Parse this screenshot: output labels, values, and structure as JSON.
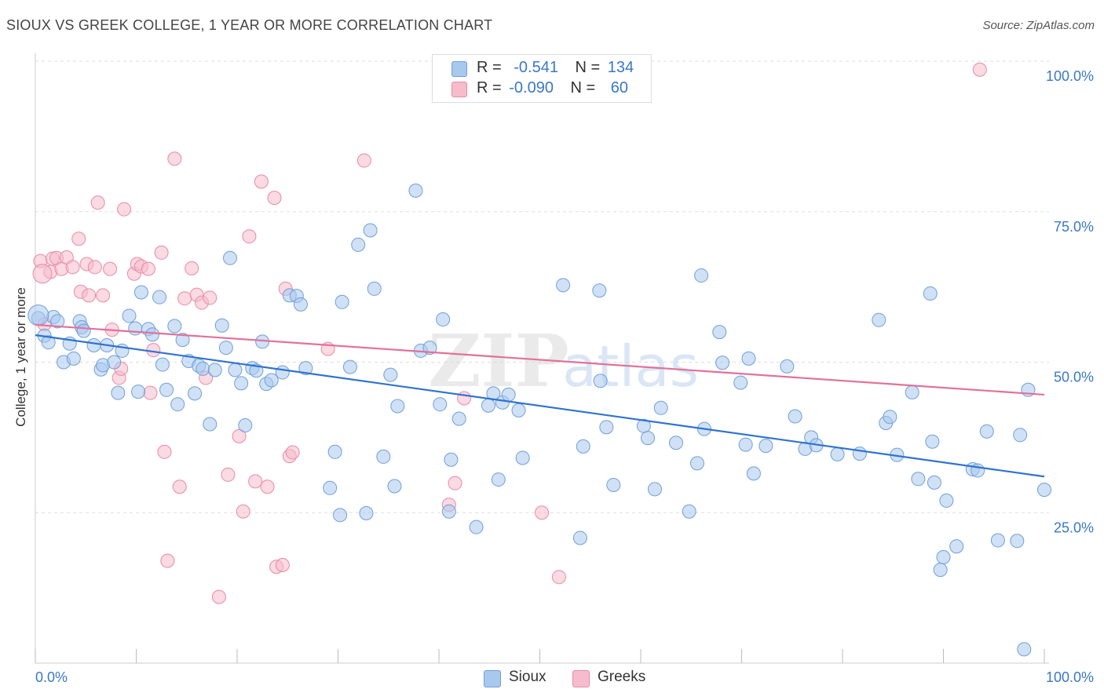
{
  "title": "SIOUX VS GREEK COLLEGE, 1 YEAR OR MORE CORRELATION CHART",
  "source": "Source: ZipAtlas.com",
  "watermark": {
    "zip": "ZIP",
    "atlas": "atlas"
  },
  "colors": {
    "sioux_fill": "#a9c8ee",
    "sioux_stroke": "#6f9fd8",
    "sioux_line": "#2f73d0",
    "greeks_fill": "#f6bccc",
    "greeks_stroke": "#e98aa6",
    "greeks_line": "#e2719a",
    "axis_label": "#3a78c8",
    "grid": "#dddddd"
  },
  "legend": {
    "rows": [
      {
        "r_label": "R =",
        "r_value": "-0.541",
        "n_label": "N =",
        "n_value": "134"
      },
      {
        "r_label": "R =",
        "r_value": "-0.090",
        "n_label": "N =",
        "n_value": "60"
      }
    ]
  },
  "bottom_legend": {
    "sioux": "Sioux",
    "greeks": "Greeks"
  },
  "chart_data": {
    "type": "scatter",
    "ylabel": "College, 1 year or more",
    "x_tick_labels": [
      "0.0%",
      "100.0%"
    ],
    "y_tick_labels": [
      "25.0%",
      "50.0%",
      "75.0%",
      "100.0%"
    ],
    "xlim": [
      0,
      100
    ],
    "ylim": [
      0,
      100
    ],
    "grid": true,
    "series": [
      {
        "name": "Sioux",
        "trend": {
          "x1": 0,
          "y1": 54.5,
          "x2": 100,
          "y2": 31.0
        },
        "points": [
          [
            0.3,
            57.3
          ],
          [
            0.9,
            54.4
          ],
          [
            1.3,
            53.3
          ],
          [
            1.8,
            57.5
          ],
          [
            2.2,
            56.8
          ],
          [
            2.8,
            50.0
          ],
          [
            3.4,
            53.1
          ],
          [
            3.8,
            50.6
          ],
          [
            4.4,
            56.8
          ],
          [
            4.6,
            55.8
          ],
          [
            4.8,
            55.2
          ],
          [
            5.8,
            52.8
          ],
          [
            6.5,
            48.8
          ],
          [
            6.7,
            49.5
          ],
          [
            7.1,
            52.8
          ],
          [
            7.8,
            50.0
          ],
          [
            8.2,
            44.9
          ],
          [
            8.6,
            51.9
          ],
          [
            9.3,
            57.7
          ],
          [
            9.9,
            55.6
          ],
          [
            10.2,
            45.1
          ],
          [
            10.5,
            61.6
          ],
          [
            11.2,
            55.5
          ],
          [
            11.6,
            54.6
          ],
          [
            12.3,
            60.8
          ],
          [
            12.6,
            49.6
          ],
          [
            13.0,
            45.4
          ],
          [
            13.8,
            56.0
          ],
          [
            14.1,
            43.0
          ],
          [
            14.6,
            53.7
          ],
          [
            15.2,
            50.2
          ],
          [
            15.8,
            44.8
          ],
          [
            16.2,
            49.4
          ],
          [
            16.6,
            48.9
          ],
          [
            17.3,
            39.7
          ],
          [
            17.8,
            48.7
          ],
          [
            18.5,
            56.1
          ],
          [
            18.9,
            52.4
          ],
          [
            19.3,
            67.3
          ],
          [
            19.8,
            48.7
          ],
          [
            20.4,
            46.5
          ],
          [
            20.8,
            39.5
          ],
          [
            21.5,
            49.0
          ],
          [
            21.9,
            48.6
          ],
          [
            22.5,
            53.4
          ],
          [
            22.9,
            46.4
          ],
          [
            23.4,
            47.0
          ],
          [
            24.5,
            48.3
          ],
          [
            25.2,
            61.1
          ],
          [
            25.9,
            61.0
          ],
          [
            26.3,
            59.6
          ],
          [
            26.8,
            49.0
          ],
          [
            29.2,
            29.1
          ],
          [
            29.7,
            35.1
          ],
          [
            30.2,
            24.6
          ],
          [
            30.4,
            60.0
          ],
          [
            31.2,
            49.2
          ],
          [
            32.0,
            69.5
          ],
          [
            32.8,
            24.9
          ],
          [
            33.2,
            71.9
          ],
          [
            33.6,
            62.2
          ],
          [
            34.5,
            34.3
          ],
          [
            35.2,
            47.9
          ],
          [
            35.6,
            29.4
          ],
          [
            35.9,
            42.7
          ],
          [
            37.7,
            78.5
          ],
          [
            38.2,
            51.9
          ],
          [
            39.1,
            52.4
          ],
          [
            40.1,
            43.0
          ],
          [
            40.4,
            57.1
          ],
          [
            41.0,
            25.2
          ],
          [
            41.2,
            33.8
          ],
          [
            42.0,
            40.6
          ],
          [
            43.7,
            22.6
          ],
          [
            44.9,
            42.8
          ],
          [
            45.4,
            44.8
          ],
          [
            45.9,
            30.5
          ],
          [
            46.3,
            43.3
          ],
          [
            46.9,
            44.6
          ],
          [
            47.9,
            42.0
          ],
          [
            48.3,
            34.1
          ],
          [
            52.3,
            62.8
          ],
          [
            54.0,
            20.8
          ],
          [
            54.3,
            36.0
          ],
          [
            55.9,
            61.9
          ],
          [
            56.0,
            46.9
          ],
          [
            56.6,
            39.2
          ],
          [
            57.3,
            29.6
          ],
          [
            60.3,
            39.4
          ],
          [
            60.7,
            37.4
          ],
          [
            61.4,
            28.9
          ],
          [
            62.0,
            42.4
          ],
          [
            63.5,
            36.6
          ],
          [
            64.8,
            25.2
          ],
          [
            65.6,
            33.2
          ],
          [
            66.0,
            64.4
          ],
          [
            66.3,
            38.9
          ],
          [
            67.8,
            55.0
          ],
          [
            68.1,
            49.9
          ],
          [
            69.9,
            46.6
          ],
          [
            70.4,
            36.3
          ],
          [
            70.7,
            50.6
          ],
          [
            71.2,
            31.5
          ],
          [
            72.4,
            36.1
          ],
          [
            74.5,
            49.3
          ],
          [
            75.3,
            41.0
          ],
          [
            76.3,
            35.6
          ],
          [
            76.9,
            37.5
          ],
          [
            77.4,
            36.2
          ],
          [
            79.5,
            34.7
          ],
          [
            81.7,
            34.8
          ],
          [
            83.6,
            57.0
          ],
          [
            84.3,
            39.9
          ],
          [
            84.7,
            40.9
          ],
          [
            85.4,
            34.6
          ],
          [
            86.9,
            45.0
          ],
          [
            87.5,
            30.6
          ],
          [
            88.7,
            61.4
          ],
          [
            88.9,
            36.8
          ],
          [
            89.1,
            30.0
          ],
          [
            89.7,
            15.5
          ],
          [
            90.0,
            17.6
          ],
          [
            90.3,
            27.0
          ],
          [
            91.3,
            19.4
          ],
          [
            92.9,
            32.2
          ],
          [
            93.4,
            32.0
          ],
          [
            94.3,
            38.5
          ],
          [
            95.4,
            20.4
          ],
          [
            97.3,
            20.3
          ],
          [
            97.6,
            37.9
          ],
          [
            98.0,
            2.3
          ],
          [
            98.4,
            45.4
          ],
          [
            100.0,
            28.8
          ]
        ]
      },
      {
        "name": "Greeks",
        "trend": {
          "x1": 0,
          "y1": 56.2,
          "x2": 100,
          "y2": 44.6
        },
        "points": [
          [
            0.5,
            66.8
          ],
          [
            0.9,
            56.3
          ],
          [
            1.5,
            65.0
          ],
          [
            1.7,
            67.2
          ],
          [
            2.1,
            67.3
          ],
          [
            2.6,
            65.5
          ],
          [
            3.1,
            67.4
          ],
          [
            3.7,
            65.8
          ],
          [
            4.3,
            70.5
          ],
          [
            4.5,
            61.7
          ],
          [
            5.1,
            66.3
          ],
          [
            5.3,
            61.1
          ],
          [
            5.9,
            65.8
          ],
          [
            6.2,
            76.5
          ],
          [
            6.7,
            61.1
          ],
          [
            7.4,
            65.5
          ],
          [
            7.6,
            55.4
          ],
          [
            8.3,
            47.4
          ],
          [
            8.5,
            48.9
          ],
          [
            8.8,
            75.4
          ],
          [
            9.8,
            64.7
          ],
          [
            10.1,
            66.3
          ],
          [
            10.5,
            65.9
          ],
          [
            11.2,
            65.5
          ],
          [
            11.4,
            44.9
          ],
          [
            11.7,
            52.0
          ],
          [
            12.5,
            68.2
          ],
          [
            12.8,
            35.1
          ],
          [
            13.1,
            17.0
          ],
          [
            13.8,
            83.8
          ],
          [
            14.3,
            29.3
          ],
          [
            14.8,
            60.6
          ],
          [
            15.5,
            65.6
          ],
          [
            16.0,
            61.2
          ],
          [
            16.5,
            59.9
          ],
          [
            16.9,
            47.4
          ],
          [
            17.3,
            60.7
          ],
          [
            18.2,
            11.0
          ],
          [
            19.1,
            31.3
          ],
          [
            20.2,
            37.7
          ],
          [
            20.6,
            25.2
          ],
          [
            21.2,
            70.9
          ],
          [
            21.8,
            30.2
          ],
          [
            22.4,
            80.0
          ],
          [
            23.0,
            29.3
          ],
          [
            23.7,
            77.3
          ],
          [
            23.9,
            16.0
          ],
          [
            24.5,
            16.3
          ],
          [
            24.8,
            62.2
          ],
          [
            25.2,
            34.4
          ],
          [
            25.5,
            35.0
          ],
          [
            29.0,
            52.2
          ],
          [
            32.6,
            83.5
          ],
          [
            41.0,
            26.3
          ],
          [
            41.6,
            29.9
          ],
          [
            42.5,
            44.0
          ],
          [
            50.2,
            25.0
          ],
          [
            51.9,
            14.3
          ],
          [
            56.8,
            100.0
          ],
          [
            93.6,
            98.6
          ]
        ]
      }
    ]
  }
}
